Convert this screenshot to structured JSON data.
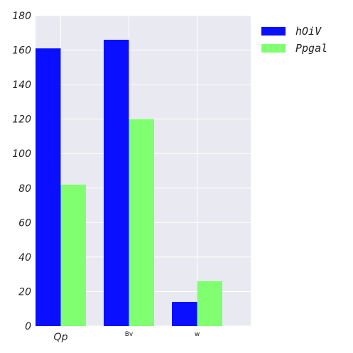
{
  "chart_data": {
    "type": "bar",
    "title": "",
    "xlabel": "",
    "ylabel": "",
    "categories": [
      "Qp",
      "Bv",
      "w"
    ],
    "series": [
      {
        "name": "hOiV",
        "color": "#0a10ff",
        "values": [
          161,
          166,
          14
        ]
      },
      {
        "name": "Ppgal",
        "color": "#80ff70",
        "values": [
          82,
          120,
          26
        ]
      }
    ],
    "ylim": [
      0,
      180
    ],
    "yticks": [
      0,
      20,
      40,
      60,
      80,
      100,
      120,
      140,
      160,
      180
    ],
    "grid": true,
    "background": "#e9e9f1",
    "legend_position": "right"
  }
}
